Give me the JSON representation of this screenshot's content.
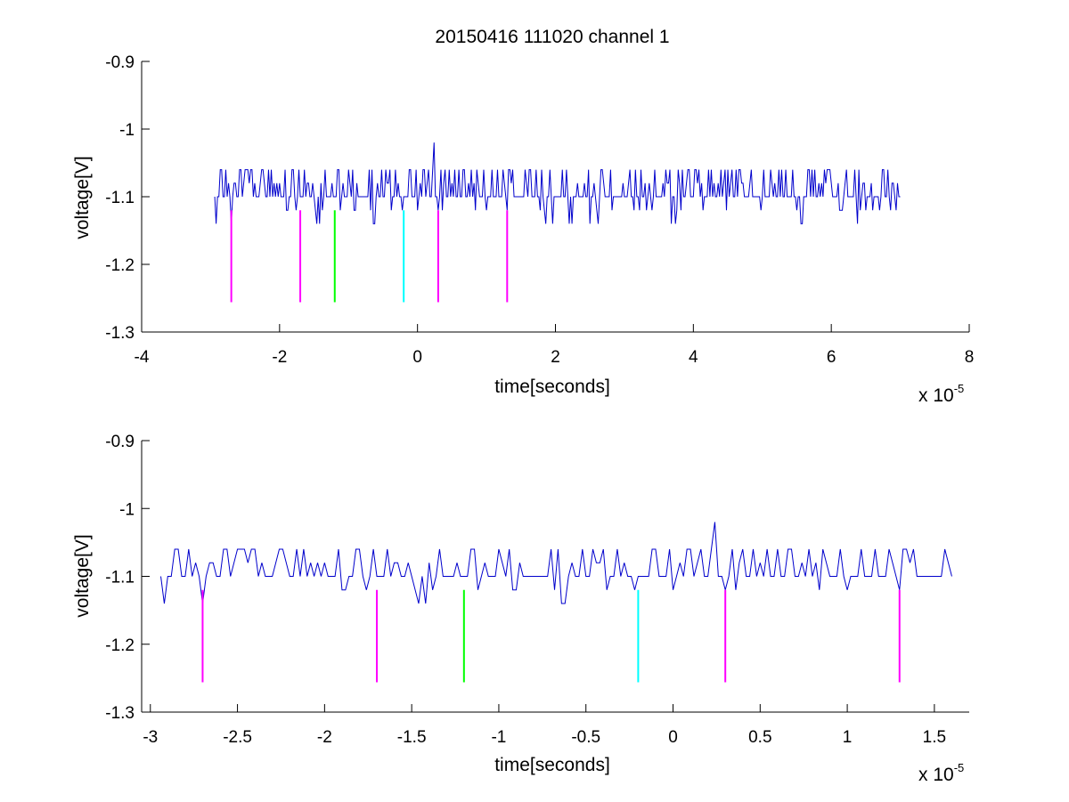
{
  "figure": {
    "title": "20150416 111020 channel 1",
    "background": "#ffffff",
    "trace_color": "#0000cc"
  },
  "chart_data": [
    {
      "type": "line",
      "title": "20150416 111020 channel 1",
      "xlabel": "time[seconds]",
      "ylabel": "voltage[V]",
      "x_multiplier_base": "x 10",
      "x_multiplier_exp": "-5",
      "xlim": [
        -4,
        8
      ],
      "ylim": [
        -1.3,
        -0.9
      ],
      "xticks": [
        -4,
        -2,
        0,
        2,
        4,
        6,
        8
      ],
      "xtick_labels": [
        "-4",
        "-2",
        "0",
        "2",
        "4",
        "6",
        "8"
      ],
      "yticks": [
        -0.9,
        -1,
        -1.1,
        -1.2,
        -1.3
      ],
      "ytick_labels": [
        "-0.9",
        "-1",
        "-1.1",
        "-1.2",
        "-1.3"
      ],
      "grid": false,
      "series": [
        {
          "color": "#0000cc",
          "x_range": [
            -2.94,
            7.0
          ],
          "baseline": -1.1,
          "levels": [
            -1.14,
            -1.12,
            -1.1,
            -1.08,
            -1.06
          ],
          "peak": {
            "x": 0.24,
            "y": -1.02
          }
        }
      ],
      "markers": [
        {
          "x": -2.7,
          "y_top": -1.12,
          "y_bottom": -1.256,
          "color": "#ff00ff"
        },
        {
          "x": -1.7,
          "y_top": -1.12,
          "y_bottom": -1.256,
          "color": "#ff00ff"
        },
        {
          "x": -1.2,
          "y_top": -1.12,
          "y_bottom": -1.256,
          "color": "#00ff00"
        },
        {
          "x": -0.2,
          "y_top": -1.12,
          "y_bottom": -1.256,
          "color": "#00ffff"
        },
        {
          "x": 0.3,
          "y_top": -1.12,
          "y_bottom": -1.256,
          "color": "#ff00ff"
        },
        {
          "x": 1.3,
          "y_top": -1.12,
          "y_bottom": -1.256,
          "color": "#ff00ff"
        }
      ]
    },
    {
      "type": "line",
      "title": "",
      "xlabel": "time[seconds]",
      "ylabel": "voltage[V]",
      "x_multiplier_base": "x 10",
      "x_multiplier_exp": "-5",
      "xlim": [
        -3.05,
        1.7
      ],
      "ylim": [
        -1.3,
        -0.9
      ],
      "xticks": [
        -3,
        -2.5,
        -2,
        -1.5,
        -1,
        -0.5,
        0,
        0.5,
        1,
        1.5
      ],
      "xtick_labels": [
        "-3",
        "-2.5",
        "-2",
        "-1.5",
        "-1",
        "-0.5",
        "0",
        "0.5",
        "1",
        "1.5"
      ],
      "yticks": [
        -0.9,
        -1,
        -1.1,
        -1.2,
        -1.3
      ],
      "ytick_labels": [
        "-0.9",
        "-1",
        "-1.1",
        "-1.2",
        "-1.3"
      ],
      "grid": false,
      "series": [
        {
          "color": "#0000cc",
          "x_range": [
            -2.94,
            1.6
          ],
          "baseline": -1.1,
          "levels": [
            -1.14,
            -1.12,
            -1.1,
            -1.08,
            -1.06
          ],
          "peak": {
            "x": 0.24,
            "y": -1.02
          }
        }
      ],
      "markers": [
        {
          "x": -2.7,
          "y_top": -1.12,
          "y_bottom": -1.256,
          "color": "#ff00ff"
        },
        {
          "x": -1.7,
          "y_top": -1.12,
          "y_bottom": -1.256,
          "color": "#ff00ff"
        },
        {
          "x": -1.2,
          "y_top": -1.12,
          "y_bottom": -1.256,
          "color": "#00ff00"
        },
        {
          "x": -0.2,
          "y_top": -1.12,
          "y_bottom": -1.256,
          "color": "#00ffff"
        },
        {
          "x": 0.3,
          "y_top": -1.12,
          "y_bottom": -1.256,
          "color": "#ff00ff"
        },
        {
          "x": 1.3,
          "y_top": -1.12,
          "y_bottom": -1.256,
          "color": "#ff00ff"
        }
      ]
    }
  ]
}
